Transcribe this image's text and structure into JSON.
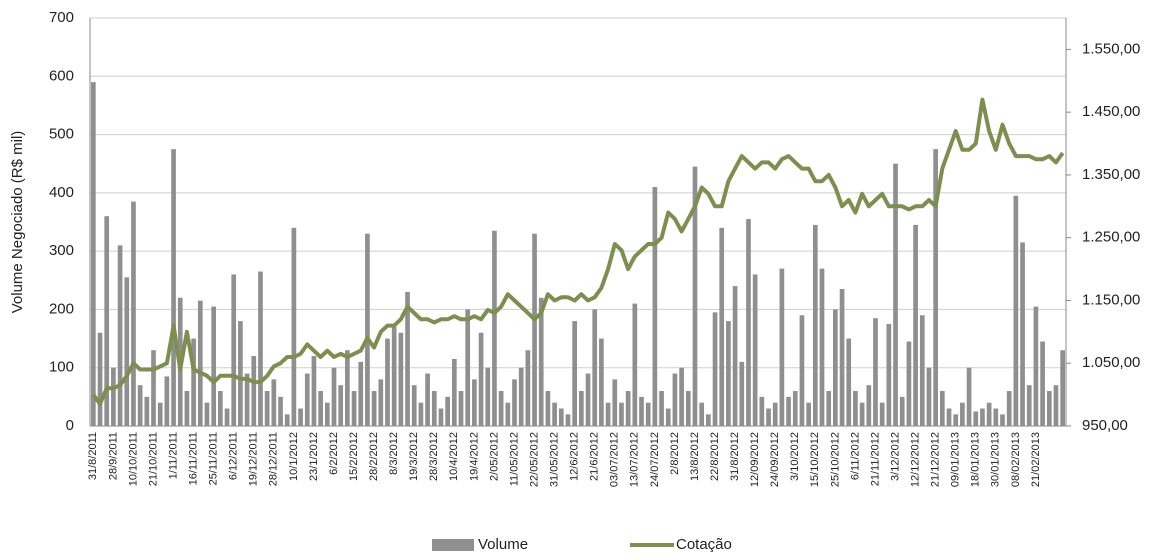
{
  "chart_data": {
    "type": "bar-line",
    "y_label": "Volume Negociado (R$ mil)",
    "categories": [
      "31/8/2011",
      null,
      null,
      "28/9/2011",
      null,
      null,
      "10/10/2011",
      null,
      null,
      "21/10/2011",
      null,
      null,
      "1/11/2011",
      null,
      null,
      "16/11/2011",
      null,
      null,
      "25/11/2011",
      null,
      null,
      "6/12/2011",
      null,
      null,
      "19/12/2011",
      null,
      null,
      "28/12/2011",
      null,
      null,
      "10/1/2012",
      null,
      null,
      "23/1/2012",
      null,
      null,
      "6/2/2012",
      null,
      null,
      "15/2/2012",
      null,
      null,
      "28/2/2012",
      null,
      null,
      "8/3/2012",
      null,
      null,
      "19/3/2012",
      null,
      null,
      "28/3/2012",
      null,
      null,
      "10/4/2012",
      null,
      null,
      "19/4/2012",
      null,
      null,
      "2/05/2012",
      null,
      null,
      "11/05/2012",
      null,
      null,
      "22/05/2012",
      null,
      null,
      "31/05/2012",
      null,
      null,
      "12/6/2012",
      null,
      null,
      "21/6/2012",
      null,
      null,
      "03/07/2012",
      null,
      null,
      "13/07/2012",
      null,
      null,
      "24/07/2012",
      null,
      null,
      "2/8/2012",
      null,
      null,
      "13/8/2012",
      null,
      null,
      "22/8/2012",
      null,
      null,
      "31/8/2012",
      null,
      null,
      "12/09/2012",
      null,
      null,
      "24/09/2012",
      null,
      null,
      "3/10/2012",
      null,
      null,
      "15/10/2012",
      null,
      null,
      "25/10/2012",
      null,
      null,
      "6/11/2012",
      null,
      null,
      "21/11/2012",
      null,
      null,
      "3/12/2012",
      null,
      null,
      "12/12/2012",
      null,
      null,
      "21/12/2012",
      null,
      null,
      "09/01/2013",
      null,
      null,
      "18/01/2013",
      null,
      null,
      "30/01/2013",
      null,
      null,
      "08/02/2013",
      null,
      null,
      "21/02/2013",
      null,
      null,
      null,
      null
    ],
    "series": [
      {
        "name": "Volume",
        "color": "#8f8f8f",
        "values": [
          590,
          160,
          360,
          100,
          310,
          255,
          385,
          70,
          50,
          130,
          40,
          85,
          475,
          220,
          60,
          150,
          215,
          40,
          205,
          60,
          30,
          260,
          180,
          90,
          120,
          265,
          60,
          80,
          50,
          20,
          340,
          30,
          90,
          120,
          60,
          40,
          100,
          70,
          130,
          60,
          110,
          330,
          60,
          80,
          150,
          170,
          160,
          230,
          70,
          40,
          90,
          60,
          30,
          50,
          115,
          60,
          200,
          80,
          160,
          100,
          335,
          60,
          40,
          80,
          100,
          130,
          330,
          220,
          60,
          40,
          30,
          20,
          180,
          60,
          90,
          200,
          150,
          40,
          80,
          40,
          60,
          210,
          50,
          40,
          410,
          60,
          30,
          90,
          100,
          60,
          445,
          40,
          20,
          195,
          340,
          180,
          240,
          110,
          355,
          260,
          50,
          30,
          40,
          270,
          50,
          60,
          190,
          40,
          345,
          270,
          60,
          200,
          235,
          150,
          60,
          40,
          70,
          185,
          40,
          175,
          450,
          50,
          145,
          345,
          190,
          100,
          475,
          60,
          30,
          20,
          40,
          100,
          25,
          30,
          40,
          30,
          20,
          60,
          395,
          315,
          70,
          205,
          145,
          60,
          70,
          130
        ]
      },
      {
        "name": "Cotação",
        "color": "#7d8f4e",
        "axis": "y2",
        "values": [
          1000,
          985,
          1010,
          1010,
          1015,
          1030,
          1050,
          1040,
          1040,
          1040,
          1045,
          1050,
          1110,
          1040,
          1100,
          1040,
          1035,
          1030,
          1020,
          1030,
          1030,
          1030,
          1025,
          1025,
          1020,
          1020,
          1030,
          1045,
          1050,
          1060,
          1060,
          1065,
          1080,
          1070,
          1060,
          1070,
          1060,
          1065,
          1060,
          1065,
          1070,
          1090,
          1075,
          1100,
          1110,
          1110,
          1120,
          1140,
          1130,
          1120,
          1120,
          1115,
          1120,
          1120,
          1125,
          1120,
          1120,
          1125,
          1120,
          1135,
          1130,
          1140,
          1160,
          1150,
          1140,
          1130,
          1120,
          1130,
          1160,
          1150,
          1155,
          1155,
          1150,
          1160,
          1150,
          1155,
          1170,
          1200,
          1240,
          1230,
          1200,
          1220,
          1230,
          1240,
          1240,
          1250,
          1290,
          1280,
          1260,
          1280,
          1300,
          1330,
          1320,
          1300,
          1300,
          1340,
          1360,
          1380,
          1370,
          1360,
          1370,
          1370,
          1360,
          1375,
          1380,
          1370,
          1360,
          1360,
          1340,
          1340,
          1350,
          1330,
          1300,
          1310,
          1290,
          1320,
          1300,
          1310,
          1320,
          1300,
          1300,
          1300,
          1295,
          1300,
          1300,
          1310,
          1300,
          1360,
          1390,
          1420,
          1390,
          1390,
          1400,
          1470,
          1420,
          1390,
          1430,
          1400,
          1380,
          1380,
          1380,
          1375,
          1375,
          1380,
          1370,
          1385
        ]
      }
    ],
    "ylim": [
      0,
      700
    ],
    "yticks": [
      0,
      100,
      200,
      300,
      400,
      500,
      600,
      700
    ],
    "y2lim": [
      950,
      1600
    ],
    "y2ticks": [
      {
        "value": 950,
        "label": "950,00"
      },
      {
        "value": 1050,
        "label": "1.050,00"
      },
      {
        "value": 1150,
        "label": "1.150,00"
      },
      {
        "value": 1250,
        "label": "1.250,00"
      },
      {
        "value": 1350,
        "label": "1.350,00"
      },
      {
        "value": 1450,
        "label": "1.450,00"
      },
      {
        "value": 1550,
        "label": "1.550,00"
      }
    ],
    "grid": true
  }
}
